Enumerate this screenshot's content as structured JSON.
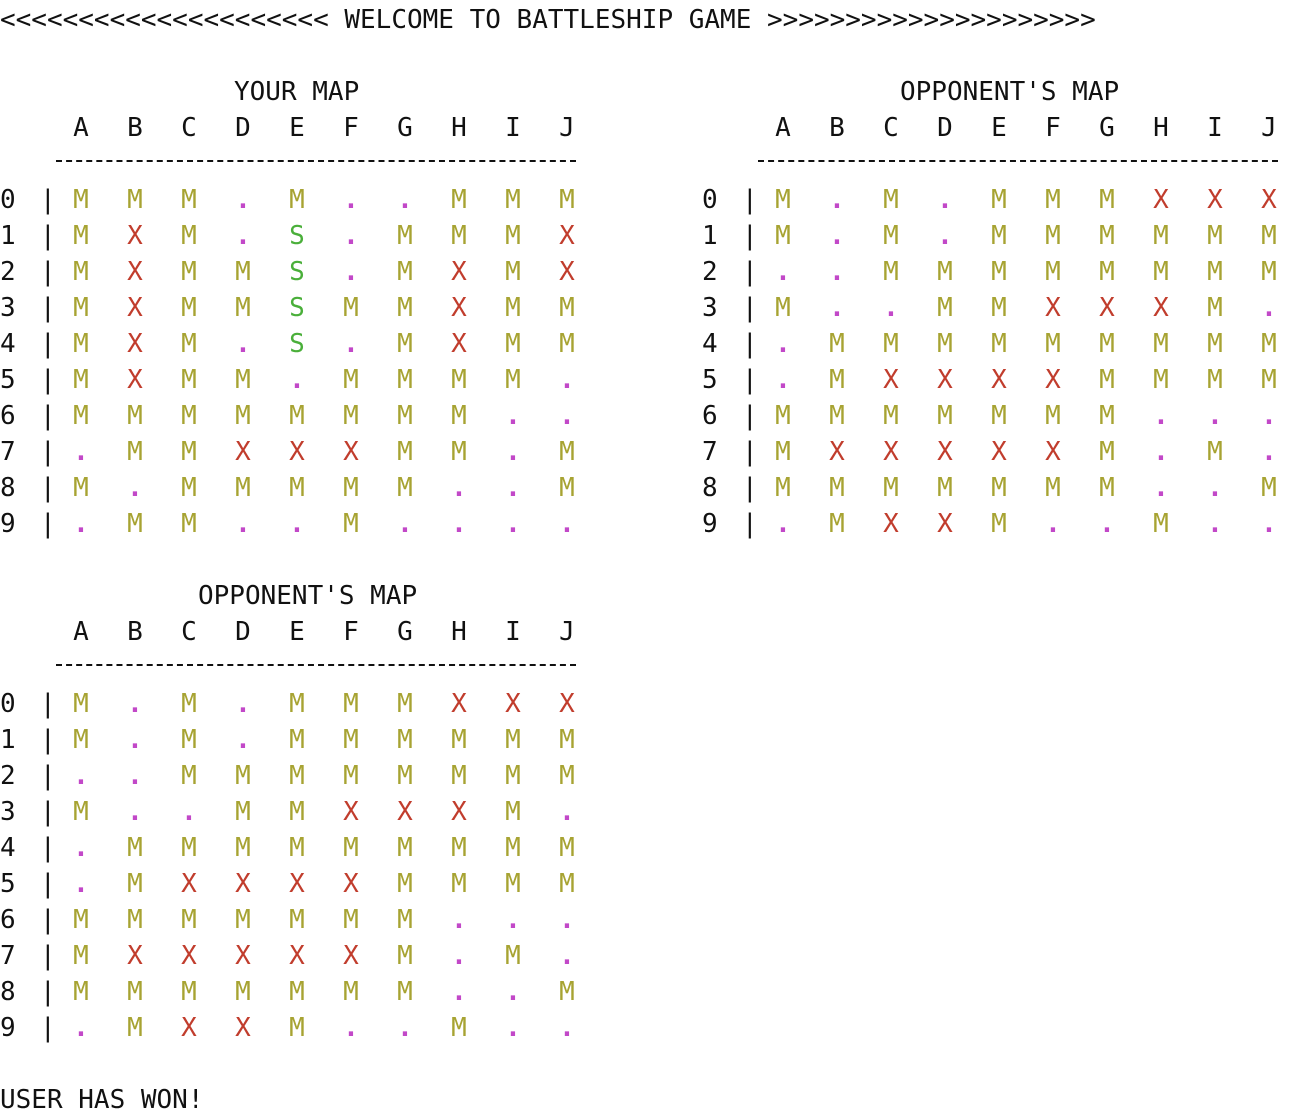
{
  "header": {
    "welcome": "<<<<<<<<<<<<<<<<<<<<< WELCOME TO BATTLESHIP GAME >>>>>>>>>>>>>>>>>>>>>"
  },
  "columns": [
    "A",
    "B",
    "C",
    "D",
    "E",
    "F",
    "G",
    "H",
    "I",
    "J"
  ],
  "rows": [
    "0",
    "1",
    "2",
    "3",
    "4",
    "5",
    "6",
    "7",
    "8",
    "9"
  ],
  "legend_colors": {
    "M": "#a7a332",
    "X": "#c13d2d",
    "S": "#4aaf3a",
    ".": "#c248c8"
  },
  "boards": [
    {
      "title": "YOUR MAP",
      "grid": [
        [
          "M",
          "M",
          "M",
          ".",
          "M",
          ".",
          ".",
          "M",
          "M",
          "M"
        ],
        [
          "M",
          "X",
          "M",
          ".",
          "S",
          ".",
          "M",
          "M",
          "M",
          "X"
        ],
        [
          "M",
          "X",
          "M",
          "M",
          "S",
          ".",
          "M",
          "X",
          "M",
          "X"
        ],
        [
          "M",
          "X",
          "M",
          "M",
          "S",
          "M",
          "M",
          "X",
          "M",
          "M"
        ],
        [
          "M",
          "X",
          "M",
          ".",
          "S",
          ".",
          "M",
          "X",
          "M",
          "M"
        ],
        [
          "M",
          "X",
          "M",
          "M",
          ".",
          "M",
          "M",
          "M",
          "M",
          "."
        ],
        [
          "M",
          "M",
          "M",
          "M",
          "M",
          "M",
          "M",
          "M",
          ".",
          "."
        ],
        [
          ".",
          "M",
          "M",
          "X",
          "X",
          "X",
          "M",
          "M",
          ".",
          "M"
        ],
        [
          "M",
          ".",
          "M",
          "M",
          "M",
          "M",
          "M",
          ".",
          ".",
          "M"
        ],
        [
          ".",
          "M",
          "M",
          ".",
          ".",
          "M",
          ".",
          ".",
          ".",
          "."
        ]
      ]
    },
    {
      "title": "OPPONENT'S MAP",
      "grid": [
        [
          "M",
          ".",
          "M",
          ".",
          "M",
          "M",
          "M",
          "X",
          "X",
          "X"
        ],
        [
          "M",
          ".",
          "M",
          ".",
          "M",
          "M",
          "M",
          "M",
          "M",
          "M"
        ],
        [
          ".",
          ".",
          "M",
          "M",
          "M",
          "M",
          "M",
          "M",
          "M",
          "M"
        ],
        [
          "M",
          ".",
          ".",
          "M",
          "M",
          "X",
          "X",
          "X",
          "M",
          "."
        ],
        [
          ".",
          "M",
          "M",
          "M",
          "M",
          "M",
          "M",
          "M",
          "M",
          "M"
        ],
        [
          ".",
          "M",
          "X",
          "X",
          "X",
          "X",
          "M",
          "M",
          "M",
          "M"
        ],
        [
          "M",
          "M",
          "M",
          "M",
          "M",
          "M",
          "M",
          ".",
          ".",
          "."
        ],
        [
          "M",
          "X",
          "X",
          "X",
          "X",
          "X",
          "M",
          ".",
          "M",
          "."
        ],
        [
          "M",
          "M",
          "M",
          "M",
          "M",
          "M",
          "M",
          ".",
          ".",
          "M"
        ],
        [
          ".",
          "M",
          "X",
          "X",
          "M",
          ".",
          ".",
          "M",
          ".",
          "."
        ]
      ]
    },
    {
      "title": "OPPONENT'S MAP",
      "grid": [
        [
          "M",
          ".",
          "M",
          ".",
          "M",
          "M",
          "M",
          "X",
          "X",
          "X"
        ],
        [
          "M",
          ".",
          "M",
          ".",
          "M",
          "M",
          "M",
          "M",
          "M",
          "M"
        ],
        [
          ".",
          ".",
          "M",
          "M",
          "M",
          "M",
          "M",
          "M",
          "M",
          "M"
        ],
        [
          "M",
          ".",
          ".",
          "M",
          "M",
          "X",
          "X",
          "X",
          "M",
          "."
        ],
        [
          ".",
          "M",
          "M",
          "M",
          "M",
          "M",
          "M",
          "M",
          "M",
          "M"
        ],
        [
          ".",
          "M",
          "X",
          "X",
          "X",
          "X",
          "M",
          "M",
          "M",
          "M"
        ],
        [
          "M",
          "M",
          "M",
          "M",
          "M",
          "M",
          "M",
          ".",
          ".",
          "."
        ],
        [
          "M",
          "X",
          "X",
          "X",
          "X",
          "X",
          "M",
          ".",
          "M",
          "."
        ],
        [
          "M",
          "M",
          "M",
          "M",
          "M",
          "M",
          "M",
          ".",
          ".",
          "M"
        ],
        [
          ".",
          "M",
          "X",
          "X",
          "M",
          ".",
          ".",
          "M",
          ".",
          "."
        ]
      ]
    }
  ],
  "footer": {
    "result": "USER HAS WON!"
  }
}
